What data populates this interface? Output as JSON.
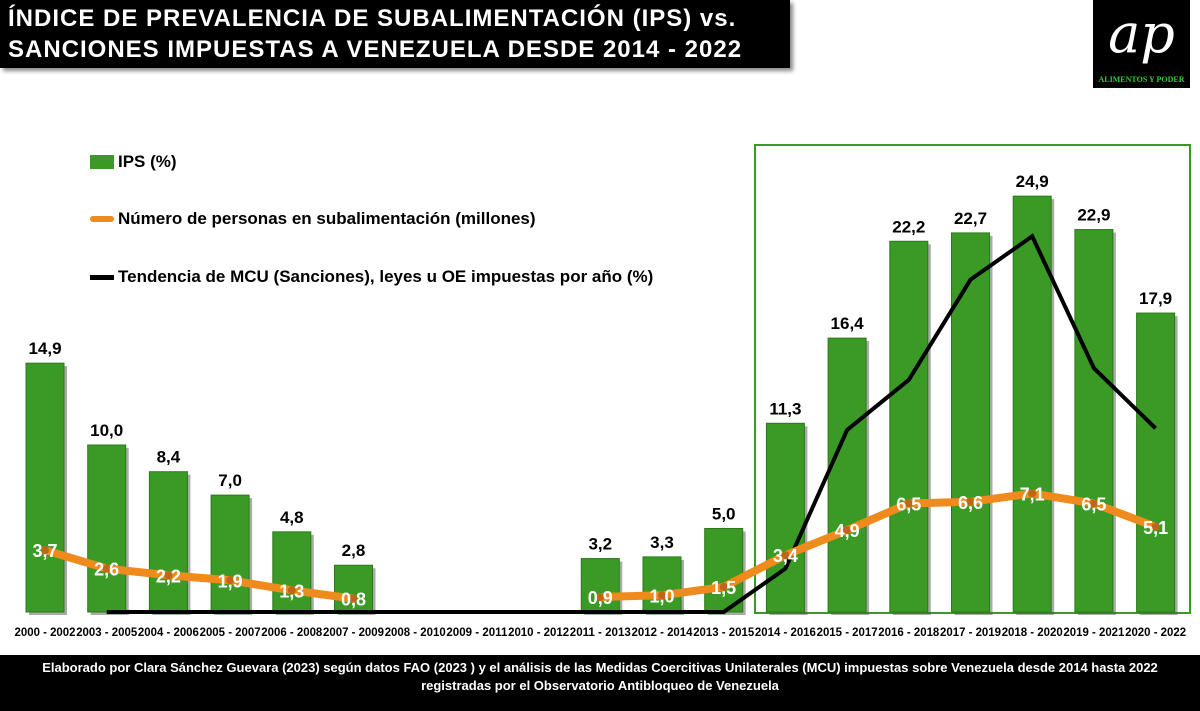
{
  "title": {
    "line1": "ÍNDICE DE PREVALENCIA DE SUBALIMENTACIÓN (IPS) vs.",
    "line2": "SANCIONES IMPUESTAS A VENEZUELA DESDE 2014 - 2022"
  },
  "logo": {
    "text": "ap",
    "tagline": "ALIMENTOS Y PODER"
  },
  "footer": {
    "line1": "Elaborado por Clara Sánchez Guevara (2023) según  datos FAO (2023 ) y el análisis  de las  Medidas Coercitivas Unilaterales (MCU)  impuestas sobre Venezuela desde 2014 hasta 2022",
    "line2": "registradas por el Observatorio Antibloqueo de Venezuela"
  },
  "colors": {
    "bars": "#3a9a25",
    "persons": "#ef8a1c",
    "sanctions": "#000000",
    "highlight_box": "#3a9a25"
  },
  "chart_data": {
    "type": "bar+line",
    "categories": [
      "2000 - 2002",
      "2003 - 2005",
      "2004 - 2006",
      "2005 - 2007",
      "2006 - 2008",
      "2007 - 2009",
      "2008 - 2010",
      "2009 - 2011",
      "2010 - 2012",
      "2011 - 2013",
      "2012 - 2014",
      "2013 - 2015",
      "2014 - 2016",
      "2015 - 2017",
      "2016 - 2018",
      "2017 - 2019",
      "2018 - 2020",
      "2019 - 2021",
      "2020 - 2022"
    ],
    "series": [
      {
        "name": "IPS (%)",
        "type": "bar",
        "values": [
          14.9,
          10.0,
          8.4,
          7.0,
          4.8,
          2.8,
          null,
          null,
          null,
          3.2,
          3.3,
          5.0,
          11.3,
          16.4,
          22.2,
          22.7,
          24.9,
          22.9,
          17.9
        ],
        "labels": [
          "14,9",
          "10,0",
          "8,4",
          "7,0",
          "4,8",
          "2,8",
          "",
          "",
          "",
          "3,2",
          "3,3",
          "5,0",
          "11,3",
          "16,4",
          "22,2",
          "22,7",
          "24,9",
          "22,9",
          "17,9"
        ]
      },
      {
        "name": "Número de personas en subalimentación (millones)",
        "type": "line",
        "values": [
          3.7,
          2.6,
          2.2,
          1.9,
          1.3,
          0.8,
          null,
          null,
          null,
          0.9,
          1.0,
          1.5,
          3.4,
          4.9,
          6.5,
          6.6,
          7.1,
          6.5,
          5.1
        ],
        "labels": [
          "3,7",
          "2,6",
          "2,2",
          "1,9",
          "1,3",
          "0,8",
          "",
          "",
          "",
          "0,9",
          "1,0",
          "1,5",
          "3,4",
          "4,9",
          "6,5",
          "6,6",
          "7,1",
          "6,5",
          "5,1"
        ]
      },
      {
        "name": "Tendencia de MCU (Sanciones), leyes u OE impuestas por año (%)",
        "type": "line",
        "values": [
          null,
          0,
          0,
          0,
          0,
          0,
          0,
          0,
          0,
          0,
          0,
          0,
          2.6,
          10.9,
          13.9,
          19.9,
          22.5,
          14.6,
          11.0
        ]
      }
    ],
    "ylim": [
      0,
      26
    ],
    "grid": false,
    "legend": "top-left"
  }
}
